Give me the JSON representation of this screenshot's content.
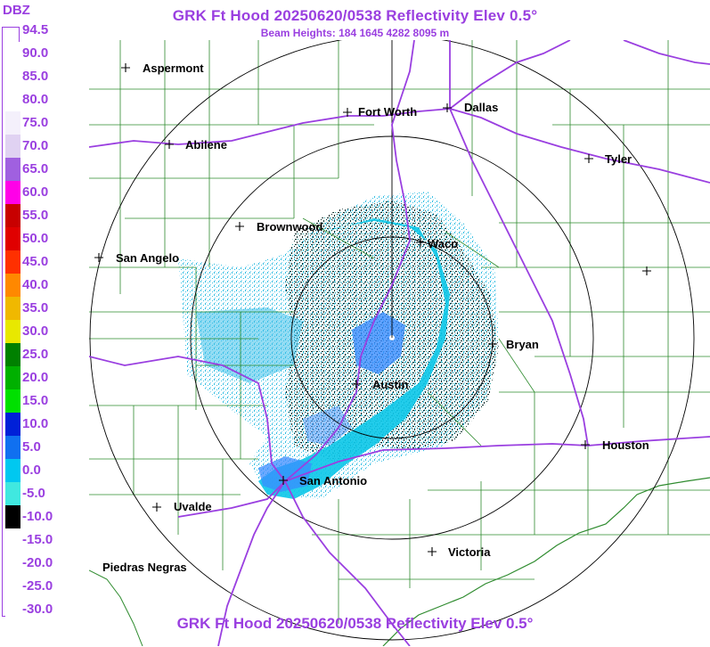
{
  "header": {
    "title": "GRK Ft Hood 20250620/0538 Reflectivity Elev 0.5°",
    "subtitle": "Beam Heights: 184 1645 4282 8095 m",
    "footer": "GRK Ft Hood 20250620/0538 Reflectivity Elev 0.5°"
  },
  "legend": {
    "unit": "DBZ",
    "levels": [
      {
        "label": "94.5",
        "color": "#ffffff"
      },
      {
        "label": "90.0",
        "color": "#ffffff"
      },
      {
        "label": "85.0",
        "color": "#ffffff"
      },
      {
        "label": "80.0",
        "color": "#f4f0fb"
      },
      {
        "label": "75.0",
        "color": "#e0d2f2"
      },
      {
        "label": "70.0",
        "color": "#a060e0"
      },
      {
        "label": "65.0",
        "color": "#ff00e8"
      },
      {
        "label": "60.0",
        "color": "#c80000"
      },
      {
        "label": "55.0",
        "color": "#e00000"
      },
      {
        "label": "50.0",
        "color": "#ff3000"
      },
      {
        "label": "45.0",
        "color": "#ff8800"
      },
      {
        "label": "40.0",
        "color": "#f0b800"
      },
      {
        "label": "35.0",
        "color": "#e8e800"
      },
      {
        "label": "30.0",
        "color": "#008000"
      },
      {
        "label": "25.0",
        "color": "#00b000"
      },
      {
        "label": "20.0",
        "color": "#00e000"
      },
      {
        "label": "15.0",
        "color": "#0020d8"
      },
      {
        "label": "10.0",
        "color": "#1070f0"
      },
      {
        "label": "5.0",
        "color": "#00c8f0"
      },
      {
        "label": "0.0",
        "color": "#40e8e0"
      },
      {
        "label": "-5.0",
        "color": "#000000"
      },
      {
        "label": "-10.0",
        "color": "#ffffff"
      },
      {
        "label": "-15.0",
        "color": "#ffffff"
      },
      {
        "label": "-20.0",
        "color": "#ffffff"
      },
      {
        "label": "-25.0",
        "color": "#ffffff"
      },
      {
        "label": "-30.0",
        "color": "#ffffff"
      }
    ]
  },
  "map": {
    "colors": {
      "counties": "#2e8b2e",
      "highways": "#9a3fe0",
      "rings": "#000000",
      "echo_light": "#00ccee",
      "echo_blue": "#3a8cff",
      "echo_dark": "#10302c"
    },
    "cities": [
      {
        "name": "Aspermont"
      },
      {
        "name": "Fort Worth"
      },
      {
        "name": "Dallas"
      },
      {
        "name": "Abilene"
      },
      {
        "name": "Tyler"
      },
      {
        "name": "Brownwood"
      },
      {
        "name": "Waco"
      },
      {
        "name": "San Angelo"
      },
      {
        "name": "Bryan"
      },
      {
        "name": "Austin"
      },
      {
        "name": "Houston"
      },
      {
        "name": "San Antonio"
      },
      {
        "name": "Uvalde"
      },
      {
        "name": "Victoria"
      },
      {
        "name": "Piedras Negras"
      }
    ],
    "unlabeled_marker": "+"
  }
}
